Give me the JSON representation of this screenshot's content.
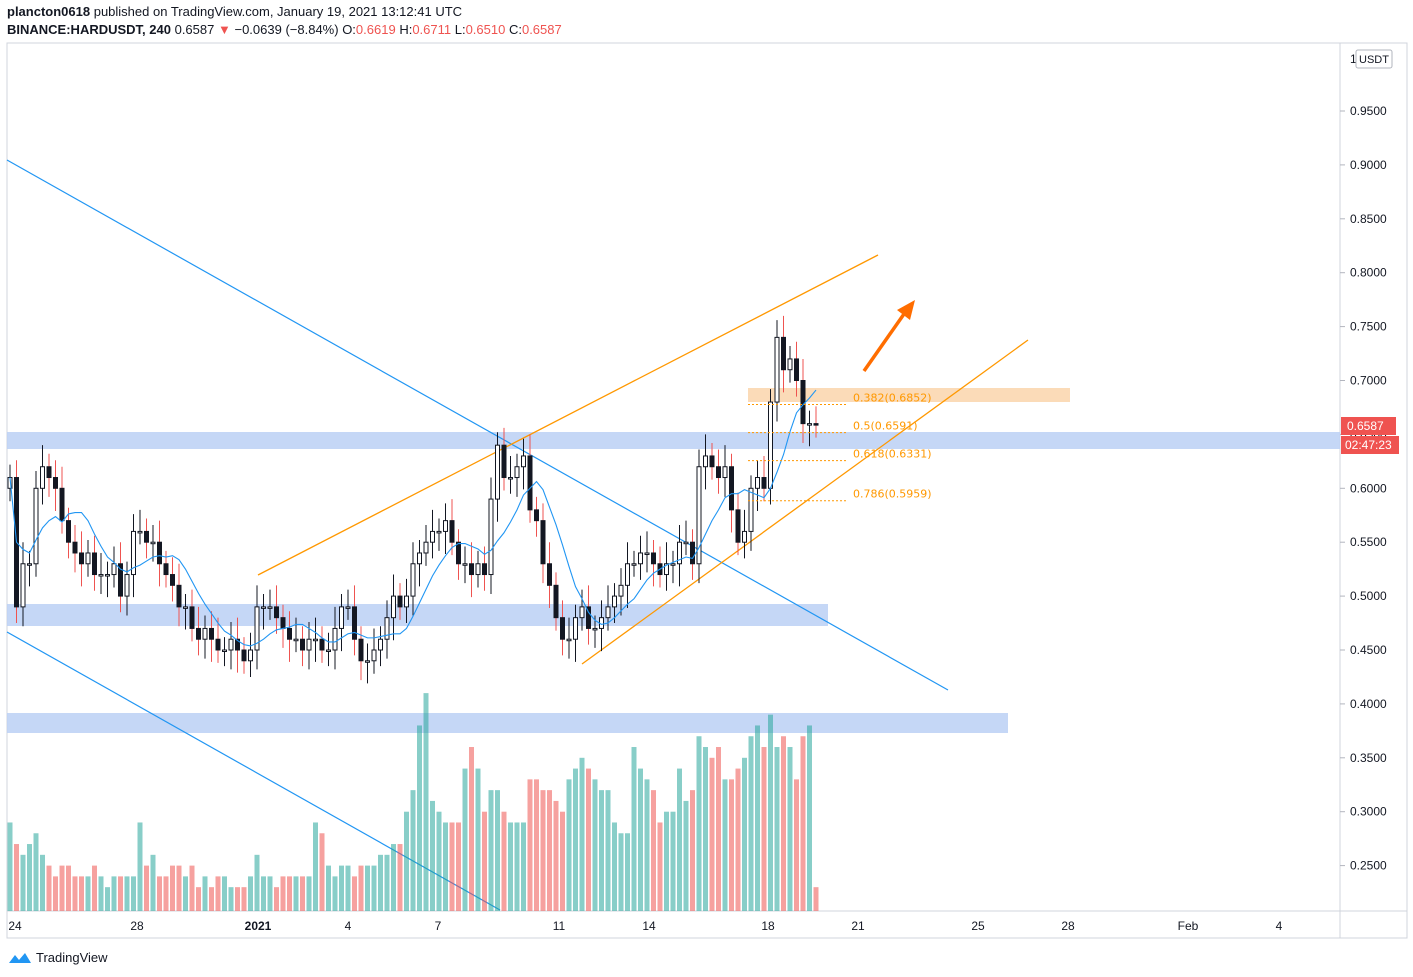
{
  "publisher": {
    "author": "plancton0618",
    "text": "published on TradingView.com, January 19, 2021 13:12:41 UTC"
  },
  "legend": {
    "symbol": "BINANCE:HARDUSDT, 240",
    "last": "0.6587",
    "arrow": "▼",
    "change": "−0.0639 (−8.84%)",
    "o_label": "O:",
    "o": "0.6619",
    "h_label": "H:",
    "h": "0.6711",
    "l_label": "L:",
    "l": "0.6510",
    "c_label": "C:",
    "c": "0.6587"
  },
  "colors": {
    "up": "#26a69a",
    "down": "#ef5350",
    "candle_body": "#131722",
    "trendline_blue": "#2196f3",
    "trendline_orange": "#ff9800",
    "zone_blue": "#bbd0f5",
    "zone_orange": "#fbd7b0",
    "ma": "#2196f3"
  },
  "footer": {
    "brand": "TradingView"
  },
  "chart_data": {
    "type": "candlestick",
    "currency_label": "USDT",
    "axis_top_label": "1",
    "ylim": [
      0.215,
      1.0
    ],
    "y_ticks": [
      "0.9500",
      "0.9000",
      "0.8500",
      "0.8000",
      "0.7500",
      "0.7000",
      "0.6500",
      "0.6000",
      "0.5500",
      "0.5000",
      "0.4500",
      "0.4000",
      "0.3500",
      "0.3000",
      "0.2500"
    ],
    "x_ticks": [
      "24",
      "28",
      "2021",
      "4",
      "7",
      "11",
      "14",
      "18",
      "21",
      "25",
      "28",
      "Feb",
      "4"
    ],
    "last_price": "0.6587",
    "countdown": "02:47:23",
    "fib_levels": [
      {
        "label": "0.382(0.6852)",
        "value": 0.6852
      },
      {
        "label": "0.5(0.6591)",
        "value": 0.6591
      },
      {
        "label": "0.618(0.6331)",
        "value": 0.6331
      },
      {
        "label": "0.786(0.5959)",
        "value": 0.5959
      }
    ],
    "series": [
      {
        "name": "price",
        "closes": [
          0.61,
          0.49,
          0.53,
          0.53,
          0.6,
          0.62,
          0.61,
          0.6,
          0.57,
          0.55,
          0.54,
          0.53,
          0.54,
          0.52,
          0.52,
          0.52,
          0.53,
          0.5,
          0.52,
          0.56,
          0.56,
          0.55,
          0.55,
          0.53,
          0.52,
          0.51,
          0.49,
          0.49,
          0.47,
          0.46,
          0.47,
          0.46,
          0.45,
          0.45,
          0.46,
          0.45,
          0.44,
          0.45,
          0.49,
          0.49,
          0.49,
          0.48,
          0.47,
          0.46,
          0.46,
          0.45,
          0.46,
          0.46,
          0.45,
          0.45,
          0.47,
          0.49,
          0.49,
          0.46,
          0.44,
          0.44,
          0.45,
          0.46,
          0.48,
          0.5,
          0.49,
          0.5,
          0.53,
          0.54,
          0.55,
          0.56,
          0.56,
          0.57,
          0.55,
          0.53,
          0.53,
          0.52,
          0.53,
          0.52,
          0.59,
          0.64,
          0.61,
          0.61,
          0.62,
          0.63,
          0.58,
          0.57,
          0.53,
          0.51,
          0.48,
          0.46,
          0.46,
          0.48,
          0.49,
          0.47,
          0.47,
          0.48,
          0.49,
          0.5,
          0.51,
          0.53,
          0.53,
          0.54,
          0.54,
          0.53,
          0.52,
          0.53,
          0.53,
          0.55,
          0.55,
          0.53,
          0.62,
          0.63,
          0.62,
          0.61,
          0.62,
          0.58,
          0.55,
          0.56,
          0.6,
          0.61,
          0.6,
          0.68,
          0.74,
          0.71,
          0.72,
          0.7,
          0.66,
          0.66,
          0.659
        ]
      },
      {
        "name": "volume",
        "values": [
          0.29,
          0.27,
          0.26,
          0.27,
          0.28,
          0.26,
          0.25,
          0.24,
          0.25,
          0.25,
          0.24,
          0.24,
          0.24,
          0.25,
          0.24,
          0.23,
          0.24,
          0.24,
          0.24,
          0.24,
          0.29,
          0.25,
          0.26,
          0.24,
          0.24,
          0.25,
          0.25,
          0.24,
          0.25,
          0.23,
          0.24,
          0.23,
          0.24,
          0.24,
          0.23,
          0.23,
          0.23,
          0.24,
          0.26,
          0.24,
          0.24,
          0.23,
          0.24,
          0.24,
          0.24,
          0.24,
          0.24,
          0.29,
          0.28,
          0.25,
          0.24,
          0.25,
          0.25,
          0.24,
          0.25,
          0.25,
          0.25,
          0.26,
          0.26,
          0.27,
          0.27,
          0.3,
          0.32,
          0.38,
          0.41,
          0.31,
          0.3,
          0.29,
          0.29,
          0.29,
          0.34,
          0.36,
          0.34,
          0.3,
          0.32,
          0.32,
          0.3,
          0.29,
          0.29,
          0.29,
          0.33,
          0.33,
          0.32,
          0.32,
          0.31,
          0.3,
          0.33,
          0.34,
          0.35,
          0.34,
          0.33,
          0.32,
          0.32,
          0.29,
          0.28,
          0.28,
          0.36,
          0.34,
          0.33,
          0.32,
          0.29,
          0.3,
          0.3,
          0.34,
          0.31,
          0.32,
          0.37,
          0.36,
          0.35,
          0.36,
          0.33,
          0.33,
          0.34,
          0.35,
          0.37,
          0.38,
          0.36,
          0.39,
          0.36,
          0.37,
          0.36,
          0.33,
          0.37,
          0.38,
          0.23
        ]
      }
    ]
  }
}
